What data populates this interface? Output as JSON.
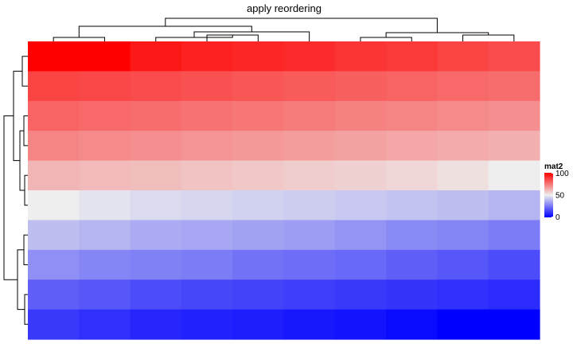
{
  "chart_data": {
    "type": "heatmap",
    "title": "apply reordering",
    "rows": 10,
    "columns": 10,
    "values": [
      [
        100,
        100,
        95,
        93,
        92,
        91,
        89,
        88,
        86,
        84
      ],
      [
        86,
        85,
        84,
        83,
        82,
        81,
        80,
        79,
        78,
        77
      ],
      [
        79,
        78,
        77,
        76,
        75,
        74,
        73,
        72,
        71,
        70
      ],
      [
        72,
        71,
        70,
        69,
        68,
        67,
        66,
        65,
        64,
        63
      ],
      [
        62,
        61,
        60,
        59,
        58,
        57,
        56,
        55,
        53,
        50
      ],
      [
        50,
        48,
        46,
        45,
        44,
        43,
        42,
        41,
        40,
        38
      ],
      [
        40,
        38,
        36,
        35,
        34,
        33,
        31,
        29,
        28,
        26
      ],
      [
        30,
        28,
        27,
        26,
        24,
        23,
        22,
        20,
        18,
        16
      ],
      [
        20,
        18,
        16,
        15,
        14,
        13,
        12,
        11,
        10,
        9
      ],
      [
        12,
        10,
        8,
        7,
        6,
        5,
        4,
        2,
        0,
        0
      ]
    ],
    "legend": {
      "title": "mat2",
      "ticks": [
        100,
        50,
        0
      ],
      "low_color": "#0000ff",
      "mid_color": "#eeeeee",
      "high_color": "#ff0000",
      "placement": "right"
    },
    "column_dendrogram": true,
    "row_dendrogram": true
  }
}
